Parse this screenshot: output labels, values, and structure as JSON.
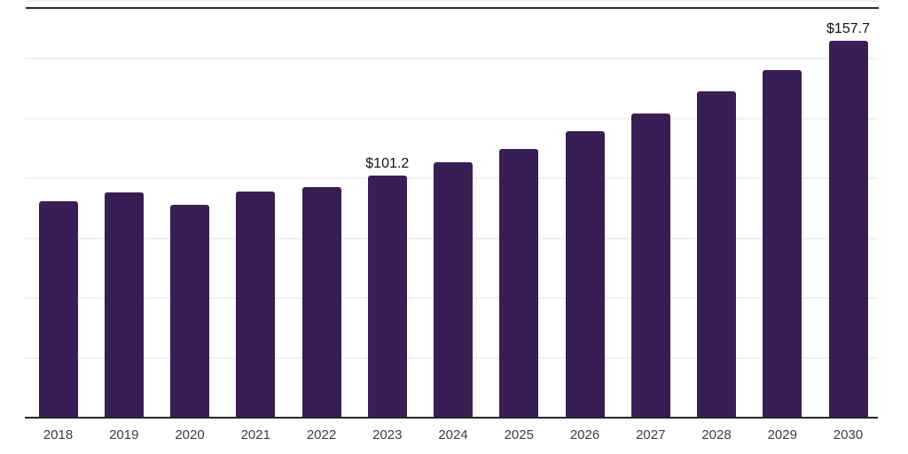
{
  "chart_data": {
    "type": "bar",
    "categories": [
      "2018",
      "2019",
      "2020",
      "2021",
      "2022",
      "2023",
      "2024",
      "2025",
      "2026",
      "2027",
      "2028",
      "2029",
      "2030"
    ],
    "values": [
      90.4,
      94.3,
      89.1,
      94.4,
      96.3,
      101.2,
      106.9,
      112.2,
      119.6,
      127.0,
      136.3,
      145.3,
      157.7
    ],
    "point_labels": [
      "",
      "",
      "",
      "",
      "",
      "$101.2",
      "",
      "",
      "",
      "",
      "",
      "",
      "$157.7"
    ],
    "title": "",
    "xlabel": "",
    "ylabel": "",
    "ylim": [
      0,
      175
    ],
    "gridline_step": 25,
    "grid": true,
    "legend": "none",
    "bar_color": "#381e54",
    "axis_color": "#262626",
    "top_border_color": "#2b2b2b",
    "gridline_color": "#f1f1f1",
    "value_label_color": "#111111",
    "tick_label_color": "#3d3d3d",
    "background_color": "#ffffff"
  }
}
